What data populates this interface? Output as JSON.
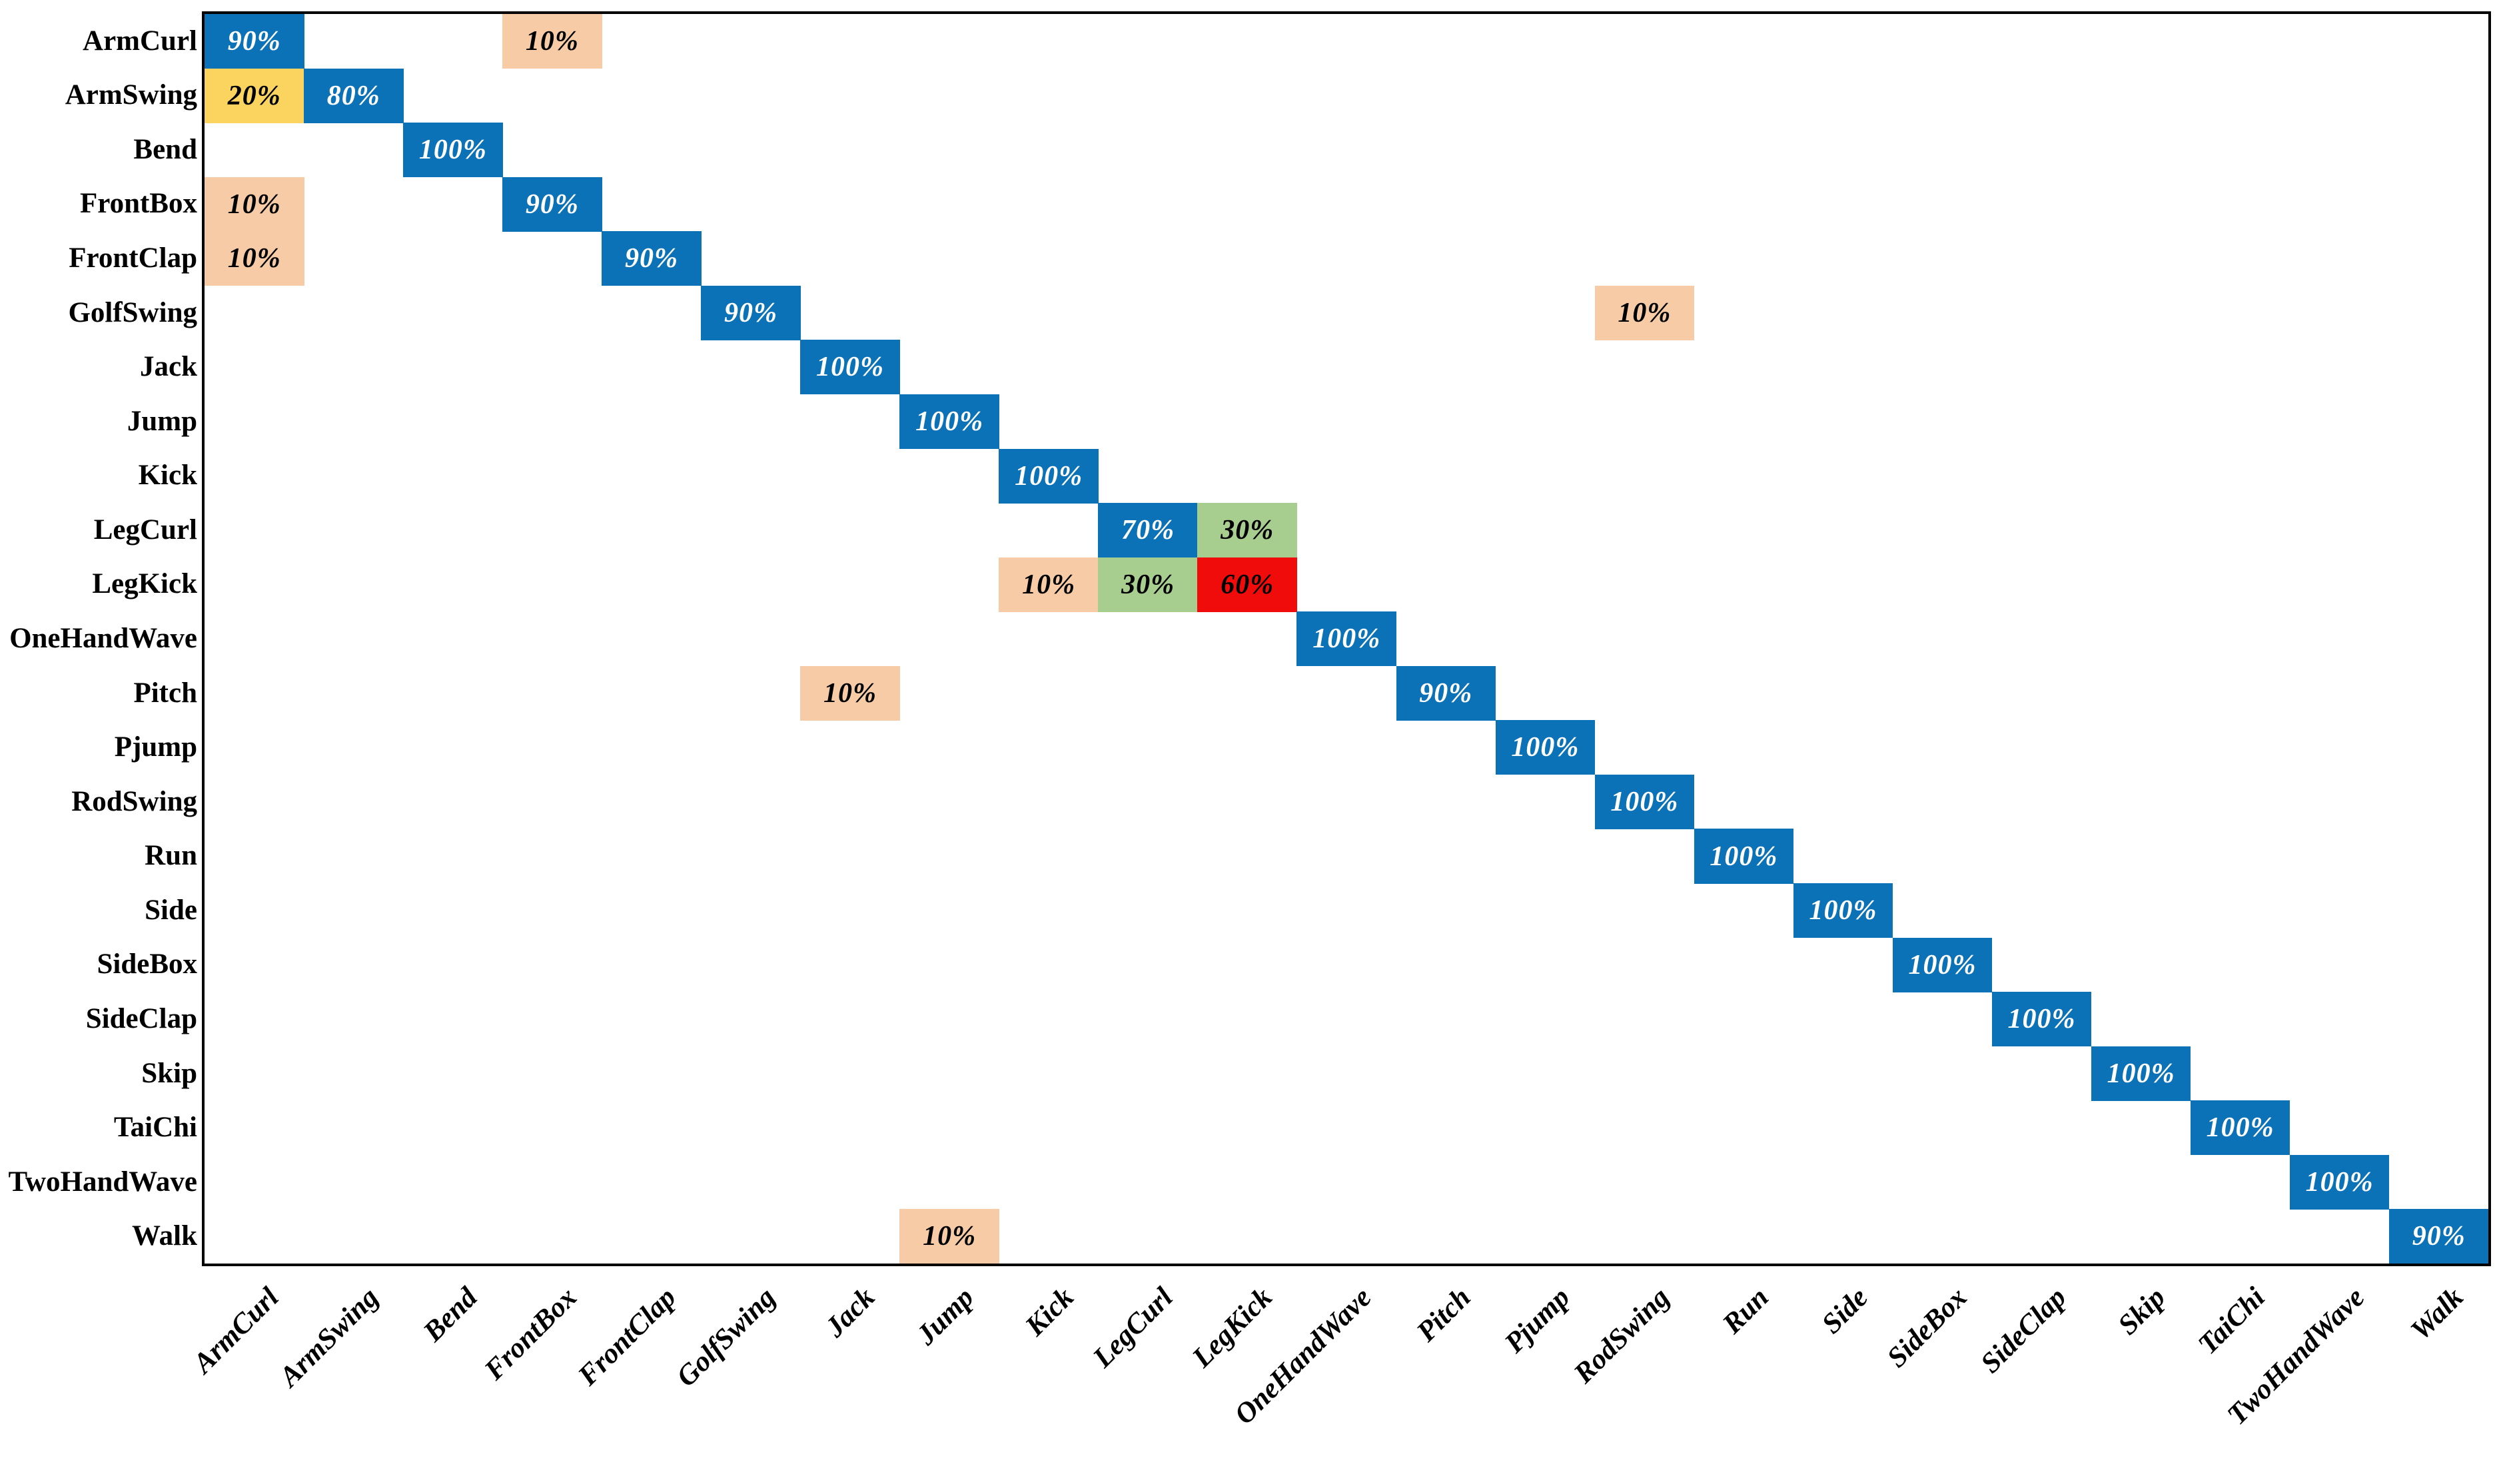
{
  "figure": {
    "title": "",
    "description": "Confusion matrix of action recognition accuracy (percent) over 23 action classes; rows are true classes, columns are predicted classes."
  },
  "palette": {
    "blue": {
      "bg": "#0C72B8",
      "text": "#FFFFFF"
    },
    "yellow": {
      "bg": "#FAD45E",
      "text": "#000000"
    },
    "peach": {
      "bg": "#F6CBA5",
      "text": "#000000"
    },
    "green": {
      "bg": "#A7CE8E",
      "text": "#000000"
    },
    "red": {
      "bg": "#F10C0C",
      "text": "#000000"
    },
    "axis_line": "#000000",
    "background": "#FFFFFF"
  },
  "chart_data": {
    "type": "heatmap",
    "title": "",
    "xlabel": "",
    "ylabel": "",
    "grid": false,
    "legend": false,
    "classes": [
      "ArmCurl",
      "ArmSwing",
      "Bend",
      "FrontBox",
      "FrontClap",
      "GolfSwing",
      "Jack",
      "Jump",
      "Kick",
      "LegCurl",
      "LegKick",
      "OneHandWave",
      "Pitch",
      "Pjump",
      "RodSwing",
      "Run",
      "Side",
      "SideBox",
      "SideClap",
      "Skip",
      "TaiChi",
      "TwoHandWave",
      "Walk"
    ],
    "x_tick_labels": [
      "ArmCurl",
      "ArmSwing",
      "Bend",
      "FrontBox",
      "FrontClap",
      "GolfSwing",
      "Jack",
      "Jump",
      "Kick",
      "LegCurl",
      "LegKick",
      "OneHandWave",
      "Pitch",
      "Pjump",
      "RodSwing",
      "Run",
      "Side",
      "SideBox",
      "SideClap",
      "Skip",
      "TaiChi",
      "TwoHandWave",
      "Walk"
    ],
    "y_tick_labels": [
      "ArmCurl",
      "ArmSwing",
      "Bend",
      "FrontBox",
      "FrontClap",
      "GolfSwing",
      "Jack",
      "Jump",
      "Kick",
      "LegCurl",
      "LegKick",
      "OneHandWave",
      "Pitch",
      "Pjump",
      "RodSwing",
      "Run",
      "Side",
      "SideBox",
      "SideClap",
      "Skip",
      "TaiChi",
      "TwoHandWave",
      "Walk"
    ],
    "cells": [
      {
        "row": "ArmCurl",
        "col": "ArmCurl",
        "value": 90,
        "label": "90%",
        "color": "blue"
      },
      {
        "row": "ArmCurl",
        "col": "FrontBox",
        "value": 10,
        "label": "10%",
        "color": "peach"
      },
      {
        "row": "ArmSwing",
        "col": "ArmCurl",
        "value": 20,
        "label": "20%",
        "color": "yellow"
      },
      {
        "row": "ArmSwing",
        "col": "ArmSwing",
        "value": 80,
        "label": "80%",
        "color": "blue"
      },
      {
        "row": "Bend",
        "col": "Bend",
        "value": 100,
        "label": "100%",
        "color": "blue"
      },
      {
        "row": "FrontBox",
        "col": "ArmCurl",
        "value": 10,
        "label": "10%",
        "color": "peach"
      },
      {
        "row": "FrontBox",
        "col": "FrontBox",
        "value": 90,
        "label": "90%",
        "color": "blue"
      },
      {
        "row": "FrontClap",
        "col": "ArmCurl",
        "value": 10,
        "label": "10%",
        "color": "peach"
      },
      {
        "row": "FrontClap",
        "col": "FrontClap",
        "value": 90,
        "label": "90%",
        "color": "blue"
      },
      {
        "row": "GolfSwing",
        "col": "GolfSwing",
        "value": 90,
        "label": "90%",
        "color": "blue"
      },
      {
        "row": "GolfSwing",
        "col": "RodSwing",
        "value": 10,
        "label": "10%",
        "color": "peach"
      },
      {
        "row": "Jack",
        "col": "Jack",
        "value": 100,
        "label": "100%",
        "color": "blue"
      },
      {
        "row": "Jump",
        "col": "Jump",
        "value": 100,
        "label": "100%",
        "color": "blue"
      },
      {
        "row": "Kick",
        "col": "Kick",
        "value": 100,
        "label": "100%",
        "color": "blue"
      },
      {
        "row": "LegCurl",
        "col": "LegCurl",
        "value": 70,
        "label": "70%",
        "color": "blue"
      },
      {
        "row": "LegCurl",
        "col": "LegKick",
        "value": 30,
        "label": "30%",
        "color": "green"
      },
      {
        "row": "LegKick",
        "col": "Kick",
        "value": 10,
        "label": "10%",
        "color": "peach"
      },
      {
        "row": "LegKick",
        "col": "LegCurl",
        "value": 30,
        "label": "30%",
        "color": "green"
      },
      {
        "row": "LegKick",
        "col": "LegKick",
        "value": 60,
        "label": "60%",
        "color": "red"
      },
      {
        "row": "OneHandWave",
        "col": "OneHandWave",
        "value": 100,
        "label": "100%",
        "color": "blue"
      },
      {
        "row": "Pitch",
        "col": "Jack",
        "value": 10,
        "label": "10%",
        "color": "peach"
      },
      {
        "row": "Pitch",
        "col": "Pitch",
        "value": 90,
        "label": "90%",
        "color": "blue"
      },
      {
        "row": "Pjump",
        "col": "Pjump",
        "value": 100,
        "label": "100%",
        "color": "blue"
      },
      {
        "row": "RodSwing",
        "col": "RodSwing",
        "value": 100,
        "label": "100%",
        "color": "blue"
      },
      {
        "row": "Run",
        "col": "Run",
        "value": 100,
        "label": "100%",
        "color": "blue"
      },
      {
        "row": "Side",
        "col": "Side",
        "value": 100,
        "label": "100%",
        "color": "blue"
      },
      {
        "row": "SideBox",
        "col": "SideBox",
        "value": 100,
        "label": "100%",
        "color": "blue"
      },
      {
        "row": "SideClap",
        "col": "SideClap",
        "value": 100,
        "label": "100%",
        "color": "blue"
      },
      {
        "row": "Skip",
        "col": "Skip",
        "value": 100,
        "label": "100%",
        "color": "blue"
      },
      {
        "row": "TaiChi",
        "col": "TaiChi",
        "value": 100,
        "label": "100%",
        "color": "blue"
      },
      {
        "row": "TwoHandWave",
        "col": "TwoHandWave",
        "value": 100,
        "label": "100%",
        "color": "blue"
      },
      {
        "row": "Walk",
        "col": "Jump",
        "value": 10,
        "label": "10%",
        "color": "peach"
      },
      {
        "row": "Walk",
        "col": "Walk",
        "value": 90,
        "label": "90%",
        "color": "blue"
      }
    ]
  }
}
